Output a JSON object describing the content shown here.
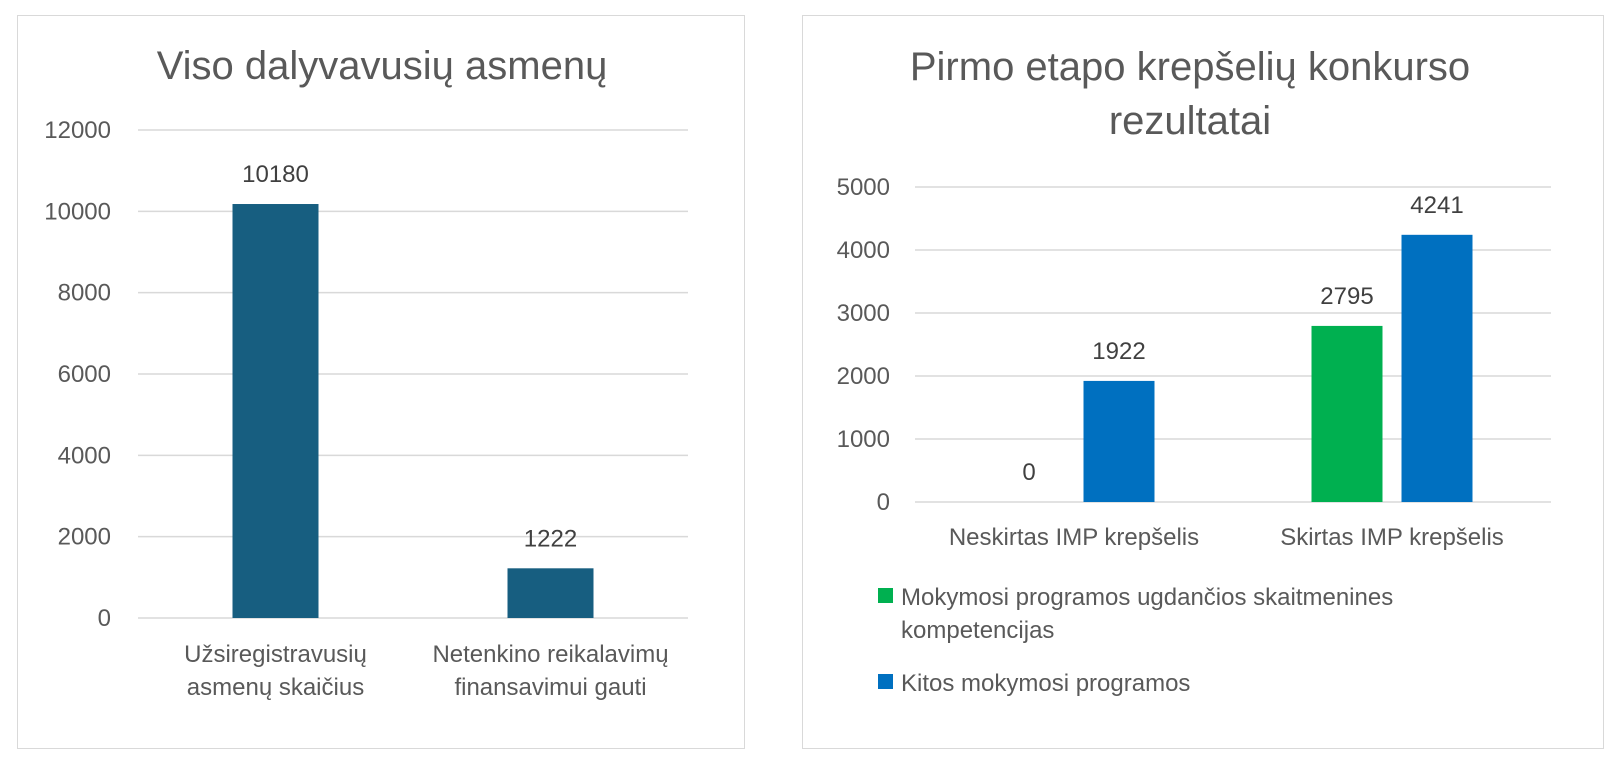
{
  "chart_data": [
    {
      "type": "bar",
      "title": "Viso dalyvavusių asmenų",
      "categories": [
        [
          "Užsiregistravusių",
          "asmenų skaičius"
        ],
        [
          "Netenkino reikalavimų",
          "finansavimui gauti"
        ]
      ],
      "values": [
        10180,
        1222
      ],
      "data_labels": [
        "10180",
        "1222"
      ],
      "ylim": [
        0,
        12000
      ],
      "yticks": [
        0,
        2000,
        4000,
        6000,
        8000,
        10000,
        12000
      ],
      "grid": true,
      "color": "#175E80"
    },
    {
      "type": "bar",
      "title": [
        "Pirmo etapo krepšelių konkurso",
        "rezultatai"
      ],
      "categories": [
        "Neskirtas IMP krepšelis",
        "Skirtas IMP krepšelis"
      ],
      "series": [
        {
          "name": [
            "Mokymosi programos ugdančios skaitmenines",
            "kompetencijas"
          ],
          "values": [
            0,
            2795
          ],
          "color": "#00B050"
        },
        {
          "name": [
            "Kitos mokymosi programos"
          ],
          "values": [
            1922,
            4241
          ],
          "color": "#0070C0"
        }
      ],
      "ylim": [
        0,
        5000
      ],
      "yticks": [
        0,
        1000,
        2000,
        3000,
        4000,
        5000
      ],
      "grid": true,
      "legend": "bottom"
    }
  ]
}
